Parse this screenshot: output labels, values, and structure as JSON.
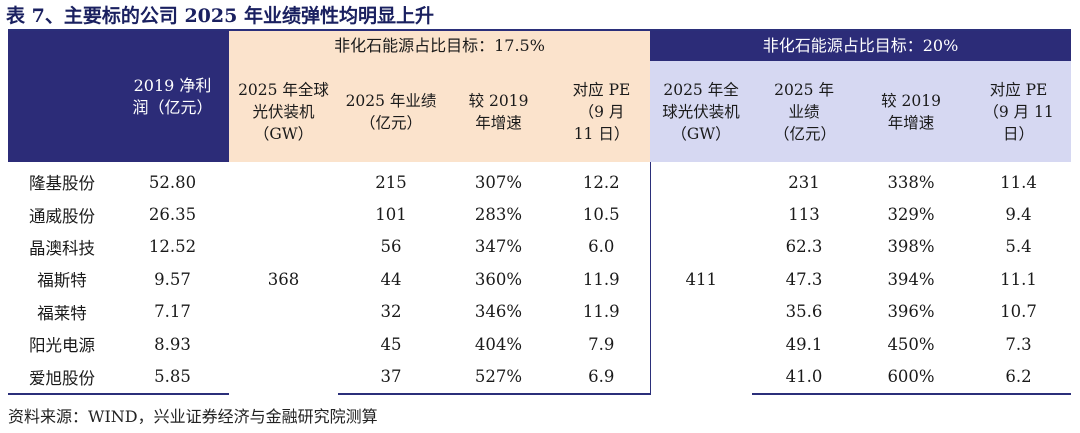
{
  "title": "表 7、主要标的公司 2025 年业绩弹性均明显上升",
  "headers": {
    "profit_2019": "2019 净利润（亿元）",
    "group_a": "非化石能源占比目标：17.5%",
    "group_b": "非化石能源占比目标：20%",
    "a_install": "2025 年全球光伏装机（GW）",
    "a_perf": "2025 年业绩（亿元）",
    "a_growth": "较 2019 年增速",
    "a_pe": "对应 PE（9 月 11 日）",
    "b_install": "2025 年全球光伏装机（GW）",
    "b_perf": "2025 年业绩（亿元）",
    "b_growth": "较 2019 年增速",
    "b_pe": "对应 PE（9 月 11 日）"
  },
  "merged": {
    "a_install": "368",
    "b_install": "411"
  },
  "rows": [
    {
      "company": "隆基股份",
      "profit": "52.80",
      "a_perf": "215",
      "a_growth": "307%",
      "a_pe": "12.2",
      "b_perf": "231",
      "b_growth": "338%",
      "b_pe": "11.4"
    },
    {
      "company": "通威股份",
      "profit": "26.35",
      "a_perf": "101",
      "a_growth": "283%",
      "a_pe": "10.5",
      "b_perf": "113",
      "b_growth": "329%",
      "b_pe": "9.4"
    },
    {
      "company": "晶澳科技",
      "profit": "12.52",
      "a_perf": "56",
      "a_growth": "347%",
      "a_pe": "6.0",
      "b_perf": "62.3",
      "b_growth": "398%",
      "b_pe": "5.4"
    },
    {
      "company": "福斯特",
      "profit": "9.57",
      "a_perf": "44",
      "a_growth": "360%",
      "a_pe": "11.9",
      "b_perf": "47.3",
      "b_growth": "394%",
      "b_pe": "11.1"
    },
    {
      "company": "福莱特",
      "profit": "7.17",
      "a_perf": "32",
      "a_growth": "346%",
      "a_pe": "11.9",
      "b_perf": "35.6",
      "b_growth": "396%",
      "b_pe": "10.7"
    },
    {
      "company": "阳光电源",
      "profit": "8.93",
      "a_perf": "45",
      "a_growth": "404%",
      "a_pe": "7.9",
      "b_perf": "49.1",
      "b_growth": "450%",
      "b_pe": "7.3"
    },
    {
      "company": "爱旭股份",
      "profit": "5.85",
      "a_perf": "37",
      "a_growth": "527%",
      "a_pe": "6.9",
      "b_perf": "41.0",
      "b_growth": "600%",
      "b_pe": "6.2"
    }
  ],
  "source": "资料来源：WIND，兴业证券经济与金融研究院测算"
}
